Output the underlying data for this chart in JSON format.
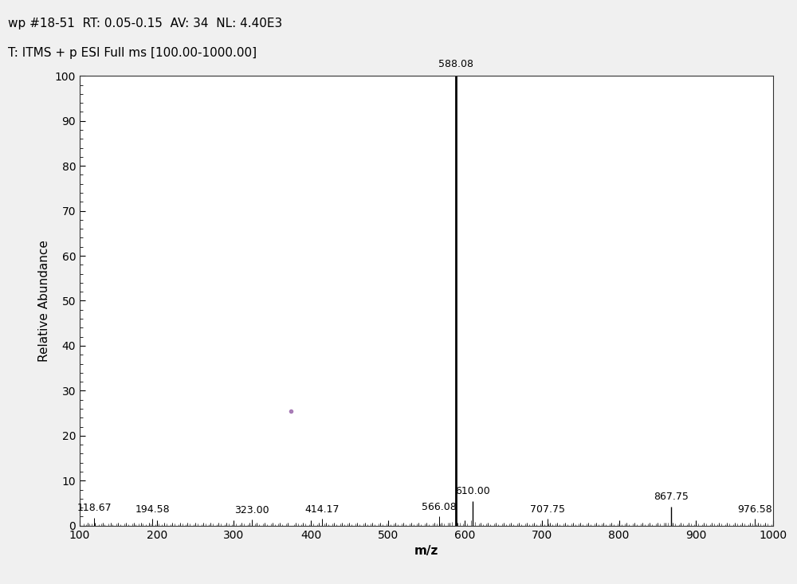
{
  "title_line1": "wp #18-51  RT: 0.05-0.15  AV: 34  NL: 4.40E3",
  "title_line2": "T: ITMS + p ESI Full ms [100.00-1000.00]",
  "xlabel": "m/z",
  "ylabel": "Relative Abundance",
  "xlim": [
    100,
    1000
  ],
  "ylim": [
    0,
    100
  ],
  "xticks": [
    100,
    200,
    300,
    400,
    500,
    600,
    700,
    800,
    900,
    1000
  ],
  "yticks": [
    0,
    10,
    20,
    30,
    40,
    50,
    60,
    70,
    80,
    90,
    100
  ],
  "background_color": "#f0f0f0",
  "plot_bg_color": "#ffffff",
  "peaks": [
    {
      "mz": 118.67,
      "intensity": 1.8,
      "label": "118.67"
    },
    {
      "mz": 194.58,
      "intensity": 1.5,
      "label": "194.58"
    },
    {
      "mz": 323.0,
      "intensity": 1.3,
      "label": "323.00"
    },
    {
      "mz": 414.17,
      "intensity": 1.5,
      "label": "414.17"
    },
    {
      "mz": 566.08,
      "intensity": 2.0,
      "label": "566.08"
    },
    {
      "mz": 588.08,
      "intensity": 100.0,
      "label": "588.08"
    },
    {
      "mz": 610.0,
      "intensity": 5.5,
      "label": "610.00"
    },
    {
      "mz": 707.75,
      "intensity": 1.5,
      "label": "707.75"
    },
    {
      "mz": 867.75,
      "intensity": 4.2,
      "label": "867.75"
    },
    {
      "mz": 976.58,
      "intensity": 1.5,
      "label": "976.58"
    }
  ],
  "dot_artifact": {
    "mz": 374,
    "intensity": 25.5,
    "color": "#9966aa"
  },
  "noise_peaks": [
    [
      105,
      0.4
    ],
    [
      108,
      0.3
    ],
    [
      112,
      0.5
    ],
    [
      115,
      0.4
    ],
    [
      120,
      0.5
    ],
    [
      125,
      0.3
    ],
    [
      128,
      0.4
    ],
    [
      132,
      0.3
    ],
    [
      137,
      0.4
    ],
    [
      142,
      0.3
    ],
    [
      148,
      0.4
    ],
    [
      153,
      0.3
    ],
    [
      158,
      0.5
    ],
    [
      163,
      0.3
    ],
    [
      168,
      0.4
    ],
    [
      172,
      0.3
    ],
    [
      177,
      0.4
    ],
    [
      182,
      0.5
    ],
    [
      186,
      0.3
    ],
    [
      192,
      0.4
    ],
    [
      198,
      0.3
    ],
    [
      202,
      0.4
    ],
    [
      207,
      0.3
    ],
    [
      213,
      0.5
    ],
    [
      218,
      0.3
    ],
    [
      223,
      0.4
    ],
    [
      228,
      0.3
    ],
    [
      233,
      0.4
    ],
    [
      238,
      0.3
    ],
    [
      243,
      0.4
    ],
    [
      248,
      0.3
    ],
    [
      253,
      0.5
    ],
    [
      258,
      0.3
    ],
    [
      263,
      0.4
    ],
    [
      268,
      0.3
    ],
    [
      273,
      0.4
    ],
    [
      278,
      0.3
    ],
    [
      283,
      0.5
    ],
    [
      288,
      0.3
    ],
    [
      293,
      0.4
    ],
    [
      298,
      0.3
    ],
    [
      303,
      0.5
    ],
    [
      308,
      0.3
    ],
    [
      313,
      0.4
    ],
    [
      318,
      0.3
    ],
    [
      328,
      0.4
    ],
    [
      333,
      0.3
    ],
    [
      338,
      0.4
    ],
    [
      343,
      0.3
    ],
    [
      348,
      0.4
    ],
    [
      353,
      0.3
    ],
    [
      358,
      0.5
    ],
    [
      363,
      0.3
    ],
    [
      368,
      0.4
    ],
    [
      378,
      0.3
    ],
    [
      383,
      0.4
    ],
    [
      388,
      0.3
    ],
    [
      393,
      0.4
    ],
    [
      398,
      0.3
    ],
    [
      403,
      0.4
    ],
    [
      408,
      0.3
    ],
    [
      418,
      0.4
    ],
    [
      423,
      0.3
    ],
    [
      428,
      0.4
    ],
    [
      433,
      0.3
    ],
    [
      438,
      0.4
    ],
    [
      443,
      0.3
    ],
    [
      448,
      0.5
    ],
    [
      453,
      0.3
    ],
    [
      458,
      0.4
    ],
    [
      463,
      0.3
    ],
    [
      468,
      0.4
    ],
    [
      473,
      0.3
    ],
    [
      478,
      0.4
    ],
    [
      483,
      0.3
    ],
    [
      488,
      0.4
    ],
    [
      493,
      0.3
    ],
    [
      498,
      0.4
    ],
    [
      503,
      0.3
    ],
    [
      508,
      0.4
    ],
    [
      513,
      0.3
    ],
    [
      518,
      0.4
    ],
    [
      523,
      0.3
    ],
    [
      528,
      0.5
    ],
    [
      533,
      0.3
    ],
    [
      538,
      0.4
    ],
    [
      543,
      0.3
    ],
    [
      548,
      0.4
    ],
    [
      553,
      0.3
    ],
    [
      558,
      0.4
    ],
    [
      563,
      0.5
    ],
    [
      568,
      0.4
    ],
    [
      573,
      0.5
    ],
    [
      578,
      0.6
    ],
    [
      583,
      0.8
    ],
    [
      593,
      0.7
    ],
    [
      598,
      0.5
    ],
    [
      603,
      0.4
    ],
    [
      608,
      1.2
    ],
    [
      613,
      0.8
    ],
    [
      618,
      0.4
    ],
    [
      623,
      0.3
    ],
    [
      628,
      0.4
    ],
    [
      633,
      0.3
    ],
    [
      638,
      0.4
    ],
    [
      643,
      0.3
    ],
    [
      648,
      0.4
    ],
    [
      653,
      0.3
    ],
    [
      658,
      0.4
    ],
    [
      663,
      0.3
    ],
    [
      668,
      0.4
    ],
    [
      673,
      0.3
    ],
    [
      678,
      0.4
    ],
    [
      683,
      0.3
    ],
    [
      688,
      0.4
    ],
    [
      693,
      0.3
    ],
    [
      698,
      0.4
    ],
    [
      703,
      0.3
    ],
    [
      708,
      0.4
    ],
    [
      713,
      0.3
    ],
    [
      718,
      0.4
    ],
    [
      723,
      0.3
    ],
    [
      728,
      0.4
    ],
    [
      733,
      0.3
    ],
    [
      738,
      0.4
    ],
    [
      743,
      0.3
    ],
    [
      748,
      0.4
    ],
    [
      753,
      0.3
    ],
    [
      758,
      0.4
    ],
    [
      763,
      0.3
    ],
    [
      768,
      0.4
    ],
    [
      773,
      0.3
    ],
    [
      778,
      0.4
    ],
    [
      783,
      0.3
    ],
    [
      788,
      0.4
    ],
    [
      793,
      0.3
    ],
    [
      798,
      0.4
    ],
    [
      803,
      0.3
    ],
    [
      808,
      0.4
    ],
    [
      813,
      0.3
    ],
    [
      818,
      0.4
    ],
    [
      823,
      0.3
    ],
    [
      828,
      0.4
    ],
    [
      833,
      0.3
    ],
    [
      838,
      0.4
    ],
    [
      843,
      0.3
    ],
    [
      848,
      0.4
    ],
    [
      853,
      0.5
    ],
    [
      858,
      0.6
    ],
    [
      863,
      0.7
    ],
    [
      868,
      0.5
    ],
    [
      873,
      0.4
    ],
    [
      878,
      0.3
    ],
    [
      883,
      0.4
    ],
    [
      888,
      0.3
    ],
    [
      893,
      0.4
    ],
    [
      898,
      0.3
    ],
    [
      903,
      0.4
    ],
    [
      908,
      0.3
    ],
    [
      913,
      0.4
    ],
    [
      918,
      0.3
    ],
    [
      923,
      0.4
    ],
    [
      928,
      0.3
    ],
    [
      933,
      0.4
    ],
    [
      938,
      0.3
    ],
    [
      943,
      0.4
    ],
    [
      948,
      0.3
    ],
    [
      953,
      0.4
    ],
    [
      958,
      0.3
    ],
    [
      963,
      0.4
    ],
    [
      968,
      0.3
    ],
    [
      973,
      0.5
    ],
    [
      978,
      0.3
    ],
    [
      983,
      0.4
    ],
    [
      988,
      0.3
    ],
    [
      993,
      0.4
    ],
    [
      998,
      0.3
    ]
  ],
  "peak_color": "#000000",
  "label_fontsize": 9,
  "axis_fontsize": 11,
  "title_fontsize": 11
}
